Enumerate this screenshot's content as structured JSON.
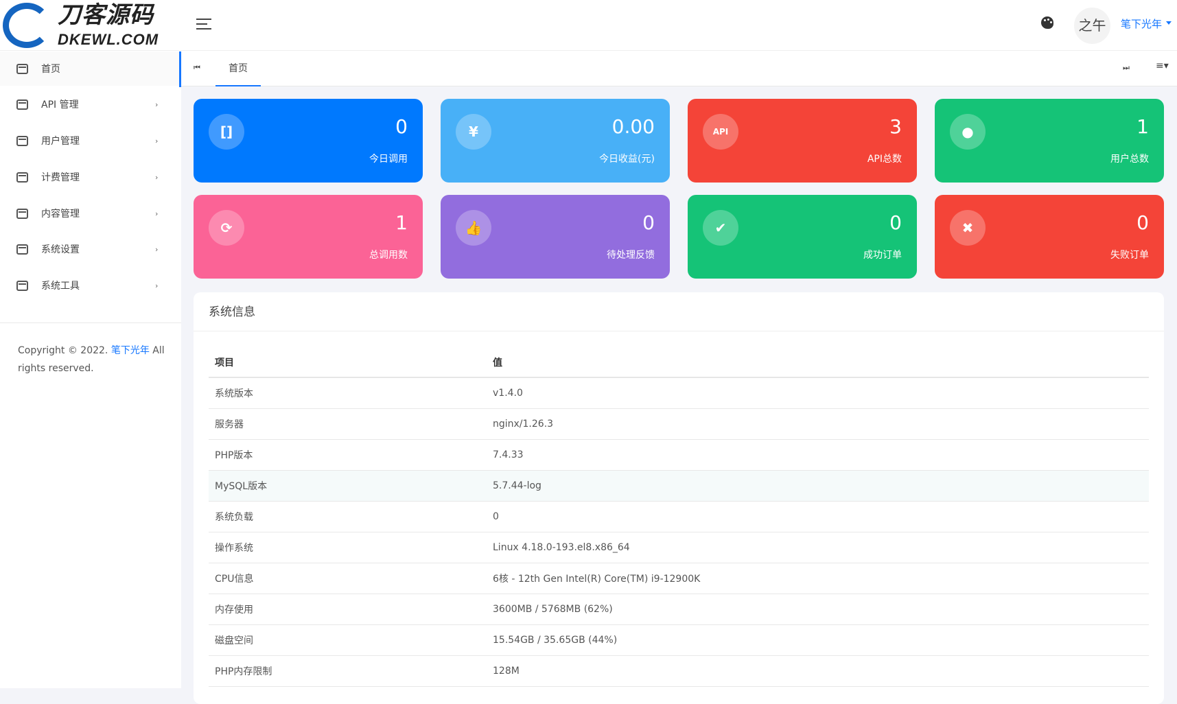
{
  "logo": {
    "cn": "刀客源码",
    "en": "DKEWL.COM"
  },
  "header": {
    "avatar_text": "之午",
    "username": "笔下光年"
  },
  "sidebar": {
    "items": [
      {
        "label": "首页",
        "active": true
      },
      {
        "label": "API 管理"
      },
      {
        "label": "用户管理"
      },
      {
        "label": "计费管理"
      },
      {
        "label": "内容管理"
      },
      {
        "label": "系统设置"
      },
      {
        "label": "系统工具"
      }
    ],
    "copyright_prefix": "Copyright © 2022. ",
    "copyright_link": "笔下光年",
    "copyright_suffix": " All rights reserved."
  },
  "tabs": {
    "items": [
      {
        "label": "首页"
      }
    ],
    "first_icon": "⏮",
    "last_icon": "⏭",
    "menu_icon": "≡▾"
  },
  "cards": [
    {
      "value": "0",
      "label": "今日调用",
      "icon": "bracket-icon",
      "glyph": "[]",
      "color": "#0079fe"
    },
    {
      "value": "0.00",
      "label": "今日收益(元)",
      "icon": "yen-icon",
      "glyph": "¥",
      "color": "#48b0f7"
    },
    {
      "value": "3",
      "label": "API总数",
      "icon": "api-icon",
      "glyph": "API",
      "color": "#f44438"
    },
    {
      "value": "1",
      "label": "用户总数",
      "icon": "user-icon",
      "glyph": "●",
      "color": "#15c377"
    },
    {
      "value": "1",
      "label": "总调用数",
      "icon": "refresh-icon",
      "glyph": "⟳",
      "color": "#fb6396"
    },
    {
      "value": "0",
      "label": "待处理反馈",
      "icon": "thumbs-up-icon",
      "glyph": "👍",
      "color": "#926dde"
    },
    {
      "value": "0",
      "label": "成功订单",
      "icon": "check-circle-icon",
      "glyph": "✔",
      "color": "#15c377"
    },
    {
      "value": "0",
      "label": "失败订单",
      "icon": "x-circle-icon",
      "glyph": "✖",
      "color": "#f44438"
    }
  ],
  "panel": {
    "title": "系统信息",
    "columns": [
      "项目",
      "值"
    ],
    "rows": [
      [
        "系统版本",
        "v1.4.0"
      ],
      [
        "服务器",
        "nginx/1.26.3"
      ],
      [
        "PHP版本",
        "7.4.33"
      ],
      [
        "MySQL版本",
        "5.7.44-log"
      ],
      [
        "系统负载",
        "0"
      ],
      [
        "操作系统",
        "Linux 4.18.0-193.el8.x86_64"
      ],
      [
        "CPU信息",
        "6核 - 12th Gen Intel(R) Core(TM) i9-12900K"
      ],
      [
        "内存使用",
        "3600MB / 5768MB (62%)"
      ],
      [
        "磁盘空间",
        "15.54GB / 35.65GB (44%)"
      ],
      [
        "PHP内存限制",
        "128M"
      ]
    ]
  }
}
